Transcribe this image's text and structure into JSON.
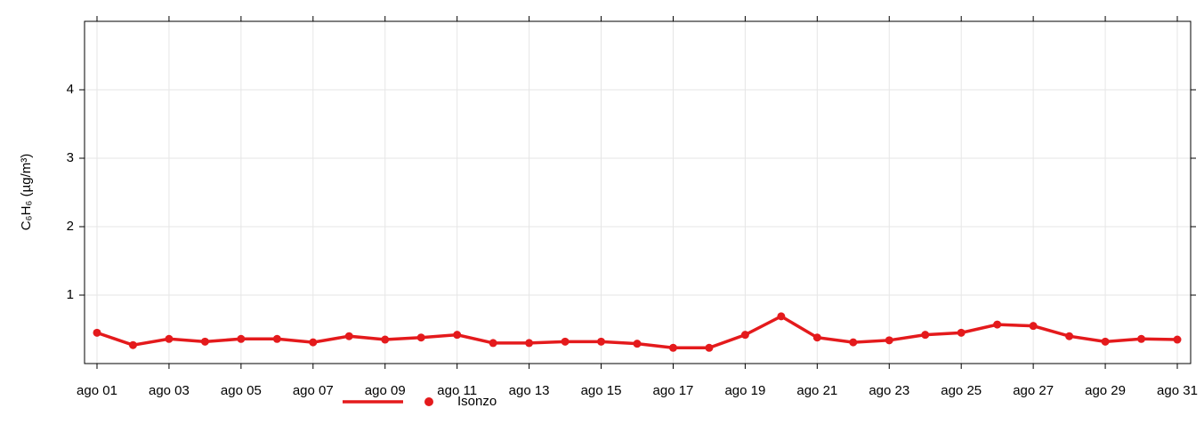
{
  "chart_data": {
    "type": "line",
    "y_label": "C₆H₆ (µg/m³)",
    "categories": [
      "ago 01",
      null,
      "ago 03",
      null,
      "ago 05",
      null,
      "ago 07",
      null,
      "ago 09",
      null,
      "ago 11",
      null,
      "ago 13",
      null,
      "ago 15",
      null,
      "ago 17",
      null,
      "ago 19",
      null,
      "ago 21",
      null,
      "ago 23",
      null,
      "ago 25",
      null,
      "ago 27",
      null,
      "ago 29",
      null,
      "ago 31"
    ],
    "series": [
      {
        "name": "Isonzo",
        "color": "#e41a1c",
        "values": [
          0.45,
          0.27,
          0.36,
          0.32,
          0.36,
          0.36,
          0.31,
          0.4,
          0.35,
          0.38,
          0.42,
          0.3,
          0.3,
          0.32,
          0.32,
          0.29,
          0.23,
          0.23,
          0.42,
          0.69,
          0.38,
          0.31,
          0.34,
          0.42,
          0.45,
          0.57,
          0.55,
          0.4,
          0.32,
          0.36,
          0.35
        ]
      }
    ],
    "ylim": [
      0,
      5
    ],
    "yticks": [
      1,
      2,
      3,
      4
    ],
    "grid": true
  }
}
